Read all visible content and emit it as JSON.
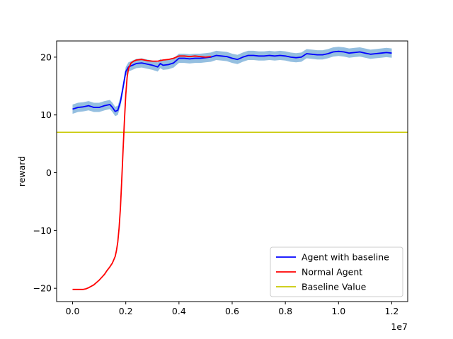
{
  "chart_data": {
    "type": "line",
    "title": "",
    "xlabel": "",
    "ylabel": "reward",
    "x_offset_text": "1e7",
    "xlim": [
      -0.06,
      1.26
    ],
    "ylim": [
      -22.3,
      22.8
    ],
    "xticks": [
      {
        "value": 0.0,
        "label": "0.0"
      },
      {
        "value": 0.2,
        "label": "0.2"
      },
      {
        "value": 0.4,
        "label": "0.4"
      },
      {
        "value": 0.6,
        "label": "0.6"
      },
      {
        "value": 0.8,
        "label": "0.8"
      },
      {
        "value": 1.0,
        "label": "1.0"
      },
      {
        "value": 1.2,
        "label": "1.2"
      }
    ],
    "yticks": [
      {
        "value": -20,
        "label": "−20"
      },
      {
        "value": -10,
        "label": "−10"
      },
      {
        "value": 0,
        "label": "0"
      },
      {
        "value": 10,
        "label": "10"
      },
      {
        "value": 20,
        "label": "20"
      }
    ],
    "grid": false,
    "legend_position": "bottom-right",
    "series": [
      {
        "name": "Agent with baseline",
        "color": "#0000ff",
        "band_color": "#8ab8dd",
        "band_width": 0.8,
        "points": [
          [
            0.0,
            11.0
          ],
          [
            0.02,
            11.3
          ],
          [
            0.04,
            11.4
          ],
          [
            0.06,
            11.6
          ],
          [
            0.08,
            11.3
          ],
          [
            0.1,
            11.3
          ],
          [
            0.12,
            11.6
          ],
          [
            0.14,
            11.8
          ],
          [
            0.15,
            11.3
          ],
          [
            0.16,
            10.6
          ],
          [
            0.17,
            10.8
          ],
          [
            0.18,
            12.3
          ],
          [
            0.19,
            14.8
          ],
          [
            0.2,
            17.5
          ],
          [
            0.21,
            18.3
          ],
          [
            0.22,
            18.5
          ],
          [
            0.24,
            18.9
          ],
          [
            0.26,
            19.0
          ],
          [
            0.28,
            18.8
          ],
          [
            0.3,
            18.6
          ],
          [
            0.32,
            18.3
          ],
          [
            0.33,
            18.9
          ],
          [
            0.34,
            18.6
          ],
          [
            0.36,
            18.7
          ],
          [
            0.38,
            19.0
          ],
          [
            0.4,
            19.8
          ],
          [
            0.42,
            19.8
          ],
          [
            0.44,
            19.7
          ],
          [
            0.46,
            19.8
          ],
          [
            0.48,
            19.8
          ],
          [
            0.5,
            19.9
          ],
          [
            0.52,
            20.0
          ],
          [
            0.54,
            20.3
          ],
          [
            0.56,
            20.2
          ],
          [
            0.58,
            20.1
          ],
          [
            0.6,
            19.8
          ],
          [
            0.62,
            19.6
          ],
          [
            0.64,
            20.0
          ],
          [
            0.66,
            20.3
          ],
          [
            0.68,
            20.3
          ],
          [
            0.7,
            20.2
          ],
          [
            0.72,
            20.2
          ],
          [
            0.74,
            20.3
          ],
          [
            0.76,
            20.2
          ],
          [
            0.78,
            20.3
          ],
          [
            0.8,
            20.2
          ],
          [
            0.82,
            20.0
          ],
          [
            0.84,
            19.9
          ],
          [
            0.86,
            20.0
          ],
          [
            0.88,
            20.6
          ],
          [
            0.9,
            20.5
          ],
          [
            0.92,
            20.4
          ],
          [
            0.94,
            20.4
          ],
          [
            0.96,
            20.6
          ],
          [
            0.98,
            20.9
          ],
          [
            1.0,
            21.0
          ],
          [
            1.02,
            20.9
          ],
          [
            1.04,
            20.7
          ],
          [
            1.06,
            20.8
          ],
          [
            1.08,
            20.9
          ],
          [
            1.1,
            20.7
          ],
          [
            1.12,
            20.5
          ],
          [
            1.14,
            20.6
          ],
          [
            1.16,
            20.7
          ],
          [
            1.18,
            20.8
          ],
          [
            1.2,
            20.7
          ]
        ]
      },
      {
        "name": "Normal Agent",
        "color": "#ff0000",
        "band_color": "",
        "band_width": 0,
        "points": [
          [
            0.0,
            -20.2
          ],
          [
            0.02,
            -20.2
          ],
          [
            0.04,
            -20.2
          ],
          [
            0.05,
            -20.1
          ],
          [
            0.06,
            -19.9
          ],
          [
            0.08,
            -19.4
          ],
          [
            0.1,
            -18.6
          ],
          [
            0.12,
            -17.6
          ],
          [
            0.13,
            -16.9
          ],
          [
            0.14,
            -16.3
          ],
          [
            0.15,
            -15.6
          ],
          [
            0.16,
            -14.5
          ],
          [
            0.165,
            -13.5
          ],
          [
            0.17,
            -12.0
          ],
          [
            0.175,
            -9.5
          ],
          [
            0.18,
            -6.0
          ],
          [
            0.185,
            -1.0
          ],
          [
            0.19,
            4.0
          ],
          [
            0.195,
            9.0
          ],
          [
            0.2,
            13.5
          ],
          [
            0.205,
            16.5
          ],
          [
            0.21,
            18.0
          ],
          [
            0.22,
            19.0
          ],
          [
            0.23,
            19.3
          ],
          [
            0.24,
            19.5
          ],
          [
            0.26,
            19.6
          ],
          [
            0.28,
            19.4
          ],
          [
            0.3,
            19.3
          ],
          [
            0.32,
            19.3
          ],
          [
            0.34,
            19.5
          ],
          [
            0.36,
            19.6
          ],
          [
            0.38,
            19.8
          ],
          [
            0.4,
            20.2
          ],
          [
            0.42,
            20.2
          ],
          [
            0.44,
            20.1
          ],
          [
            0.46,
            20.2
          ],
          [
            0.48,
            20.1
          ],
          [
            0.5,
            20.0
          ],
          [
            0.52,
            20.1
          ]
        ]
      }
    ],
    "hlines": [
      {
        "name": "Baseline Value",
        "value": 7.0,
        "color": "#c8c800"
      }
    ]
  }
}
